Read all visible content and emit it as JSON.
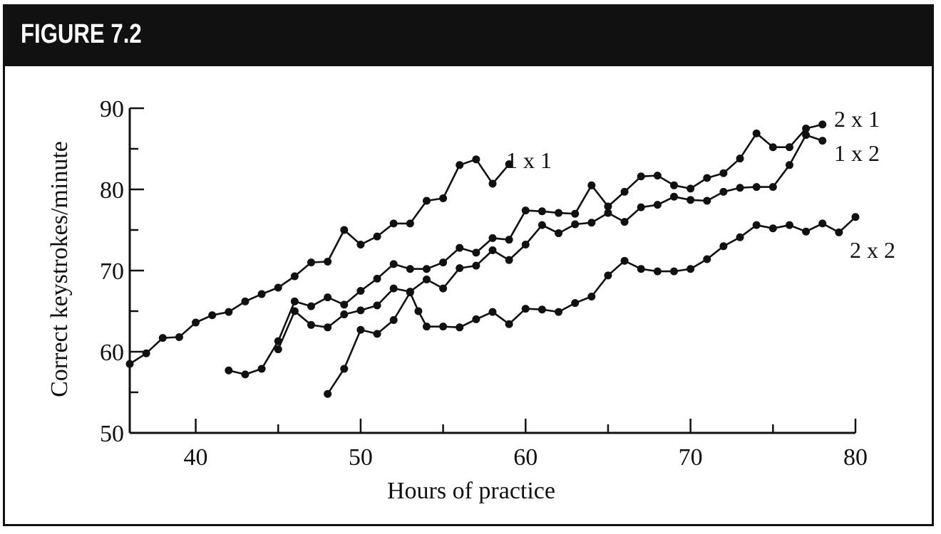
{
  "figure": {
    "label": "FIGURE 7.2"
  },
  "chart_data": {
    "type": "line",
    "xlabel": "Hours of practice",
    "ylabel": "Correct keystrokes/minute",
    "xlim": [
      36,
      80
    ],
    "ylim": [
      50,
      90
    ],
    "xticks": [
      40,
      50,
      60,
      70,
      80
    ],
    "yticks": [
      50,
      60,
      70,
      80,
      90
    ],
    "grid": false,
    "colors": {
      "line": "#111111",
      "marker": "#111111",
      "header": "#111111"
    },
    "series": [
      {
        "name": "1 x 1",
        "points": [
          [
            36,
            58.5
          ],
          [
            37,
            59.8
          ],
          [
            38,
            61.7
          ],
          [
            39,
            61.8
          ],
          [
            40,
            63.6
          ],
          [
            41,
            64.5
          ],
          [
            42,
            64.9
          ],
          [
            43,
            66.2
          ],
          [
            44,
            67.1
          ],
          [
            45,
            67.9
          ],
          [
            46,
            69.3
          ],
          [
            47,
            71.0
          ],
          [
            48,
            71.1
          ],
          [
            49,
            75.0
          ],
          [
            50,
            73.2
          ],
          [
            51,
            74.2
          ],
          [
            52,
            75.8
          ],
          [
            53,
            75.8
          ],
          [
            54,
            78.6
          ],
          [
            55,
            78.9
          ],
          [
            56,
            83.0
          ],
          [
            57,
            83.7
          ],
          [
            58,
            80.7
          ],
          [
            59,
            83.1
          ]
        ]
      },
      {
        "name": "2 x 1",
        "points": [
          [
            42,
            57.7
          ],
          [
            43,
            57.2
          ],
          [
            44,
            57.9
          ],
          [
            45,
            61.3
          ],
          [
            46,
            66.2
          ],
          [
            47,
            65.6
          ],
          [
            48,
            66.7
          ],
          [
            49,
            65.8
          ],
          [
            50,
            67.5
          ],
          [
            51,
            69.0
          ],
          [
            52,
            70.8
          ],
          [
            53,
            70.2
          ],
          [
            54,
            70.2
          ],
          [
            55,
            71.0
          ],
          [
            56,
            72.8
          ],
          [
            57,
            72.2
          ],
          [
            58,
            74.0
          ],
          [
            59,
            73.8
          ],
          [
            60,
            77.4
          ],
          [
            61,
            77.3
          ],
          [
            62,
            77.1
          ],
          [
            63,
            77.0
          ],
          [
            64,
            80.5
          ],
          [
            65,
            77.9
          ],
          [
            66,
            79.7
          ],
          [
            67,
            81.6
          ],
          [
            68,
            81.7
          ],
          [
            69,
            80.5
          ],
          [
            70,
            80.1
          ],
          [
            71,
            81.4
          ],
          [
            72,
            82.0
          ],
          [
            73,
            83.8
          ],
          [
            74,
            86.9
          ],
          [
            75,
            85.2
          ],
          [
            76,
            85.2
          ],
          [
            77,
            87.5
          ],
          [
            78,
            88.0
          ]
        ]
      },
      {
        "name": "1 x 2",
        "points": [
          [
            45,
            60.3
          ],
          [
            46,
            65.0
          ],
          [
            47,
            63.3
          ],
          [
            48,
            63.0
          ],
          [
            49,
            64.6
          ],
          [
            50,
            65.1
          ],
          [
            51,
            65.7
          ],
          [
            52,
            67.8
          ],
          [
            53,
            67.4
          ],
          [
            54,
            68.9
          ],
          [
            55,
            67.8
          ],
          [
            56,
            70.3
          ],
          [
            57,
            70.6
          ],
          [
            58,
            72.5
          ],
          [
            59,
            71.3
          ],
          [
            60,
            73.2
          ],
          [
            61,
            75.6
          ],
          [
            62,
            74.6
          ],
          [
            63,
            75.7
          ],
          [
            64,
            75.9
          ],
          [
            65,
            77.1
          ],
          [
            66,
            76.0
          ],
          [
            67,
            77.8
          ],
          [
            68,
            78.1
          ],
          [
            69,
            79.1
          ],
          [
            70,
            78.7
          ],
          [
            71,
            78.6
          ],
          [
            72,
            79.7
          ],
          [
            73,
            80.2
          ],
          [
            74,
            80.3
          ],
          [
            75,
            80.3
          ],
          [
            76,
            83.0
          ],
          [
            77,
            86.7
          ],
          [
            78,
            86.0
          ]
        ]
      },
      {
        "name": "2 x 2",
        "points": [
          [
            48,
            54.8
          ],
          [
            49,
            57.9
          ],
          [
            50,
            62.7
          ],
          [
            51,
            62.2
          ],
          [
            52,
            63.9
          ],
          [
            53,
            67.3
          ],
          [
            53.5,
            65.0
          ],
          [
            54,
            63.1
          ],
          [
            55,
            63.1
          ],
          [
            56,
            63.0
          ],
          [
            57,
            64.0
          ],
          [
            58,
            64.9
          ],
          [
            59,
            63.4
          ],
          [
            60,
            65.3
          ],
          [
            61,
            65.2
          ],
          [
            62,
            64.9
          ],
          [
            63,
            66.0
          ],
          [
            64,
            66.8
          ],
          [
            65,
            69.4
          ],
          [
            66,
            71.2
          ],
          [
            67,
            70.2
          ],
          [
            68,
            69.9
          ],
          [
            69,
            69.9
          ],
          [
            70,
            70.2
          ],
          [
            71,
            71.4
          ],
          [
            72,
            73.0
          ],
          [
            73,
            74.1
          ],
          [
            74,
            75.6
          ],
          [
            75,
            75.2
          ],
          [
            76,
            75.6
          ],
          [
            77,
            74.8
          ],
          [
            78,
            75.8
          ],
          [
            79,
            74.7
          ],
          [
            80,
            76.6
          ]
        ]
      }
    ]
  }
}
